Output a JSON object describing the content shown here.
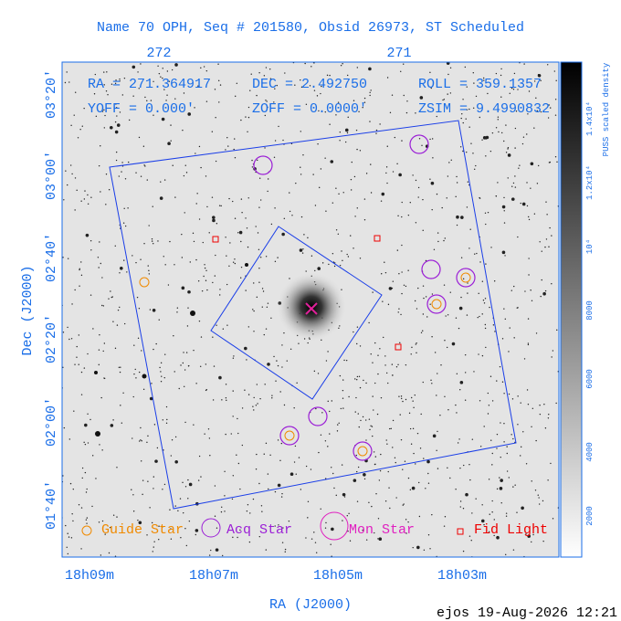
{
  "header": {
    "title": "Name 70 OPH, Seq # 201580, Obsid 26973, ST Scheduled"
  },
  "top_axis": {
    "ticks": [
      "272",
      "271"
    ]
  },
  "info": {
    "ra": "RA = 271.364917",
    "dec": "DEC = 2.492750",
    "roll": "ROLL = 359.1357",
    "yoff": "YOFF =   0.000'",
    "zoff": "ZOFF =  0.0000'",
    "zsim": "ZSIM = 9.4990832"
  },
  "left_axis": {
    "label": "Dec (J2000)",
    "ticks": [
      "03°20'",
      "03°00'",
      "02°40'",
      "02°20'",
      "02°00'",
      "01°40'"
    ]
  },
  "bottom_axis": {
    "label": "RA (J2000)",
    "ticks": [
      "18h09m",
      "18h07m",
      "18h05m",
      "18h03m"
    ]
  },
  "legend": [
    "Guide Star",
    "Acq Star",
    "Mon Star",
    "Fid Light"
  ],
  "colorbar": {
    "label": "PUSS scaled density",
    "ticks": [
      "2000",
      "4000",
      "6000",
      "8000",
      "10⁴",
      "1.2x10⁴",
      "1.4x10⁴"
    ]
  },
  "footer": "ejos 19-Aug-2026 12:21"
}
